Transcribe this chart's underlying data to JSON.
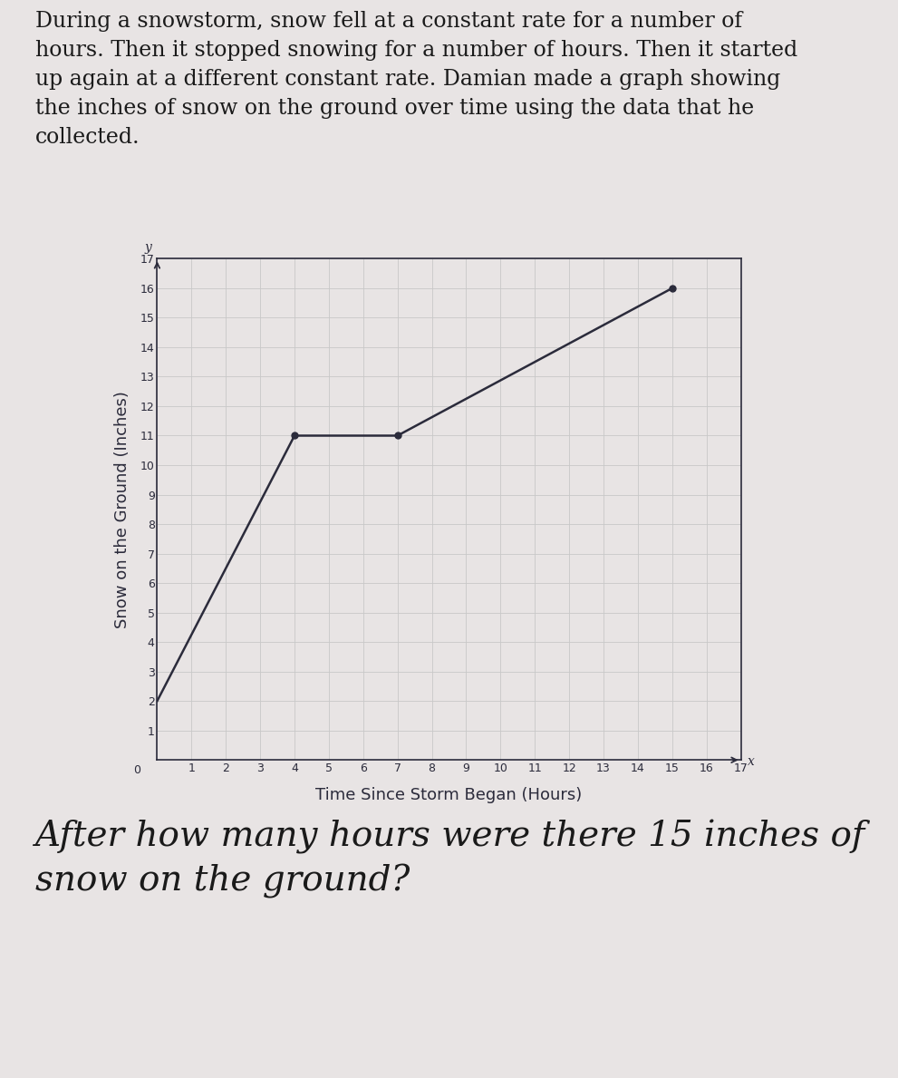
{
  "paragraph_text": "During a snowstorm, snow fell at a constant rate for a number of\nhours. Then it stopped snowing for a number of hours. Then it started\nup again at a different constant rate. Damian made a graph showing\nthe inches of snow on the ground over time using the data that he\ncollected.",
  "question_text": "After how many hours were there 15 inches of\nsnow on the ground?",
  "line_points_x": [
    0,
    4,
    7,
    15
  ],
  "line_points_y": [
    2,
    11,
    11,
    16
  ],
  "xlabel": "Time Since Storm Began (Hours)",
  "ylabel": "Snow on the Ground (Inches)",
  "xmin": 0,
  "xmax": 17,
  "ymin": 0,
  "ymax": 17,
  "xticks": [
    0,
    1,
    2,
    3,
    4,
    5,
    6,
    7,
    8,
    9,
    10,
    11,
    12,
    13,
    14,
    15,
    16,
    17
  ],
  "yticks": [
    0,
    1,
    2,
    3,
    4,
    5,
    6,
    7,
    8,
    9,
    10,
    11,
    12,
    13,
    14,
    15,
    16,
    17
  ],
  "x_label_show": [
    1,
    2,
    3,
    4,
    5,
    6,
    7,
    8,
    9,
    10,
    11,
    12,
    13,
    14,
    15,
    16,
    17
  ],
  "y_label_show": [
    1,
    2,
    3,
    4,
    5,
    6,
    7,
    8,
    9,
    10,
    11,
    12,
    13,
    14,
    15,
    16,
    17
  ],
  "line_color": "#2b2b3b",
  "marker_color": "#2b2b3b",
  "grid_color": "#c8c8c8",
  "bg_color": "#e8e4e4",
  "axis_label_color": "#2b2b3b",
  "text_color": "#1a1a1a",
  "paragraph_fontsize": 17,
  "question_fontsize": 28,
  "axis_tick_fontsize": 9,
  "axis_label_fontsize": 13,
  "marker_size": 5,
  "line_width": 1.8
}
